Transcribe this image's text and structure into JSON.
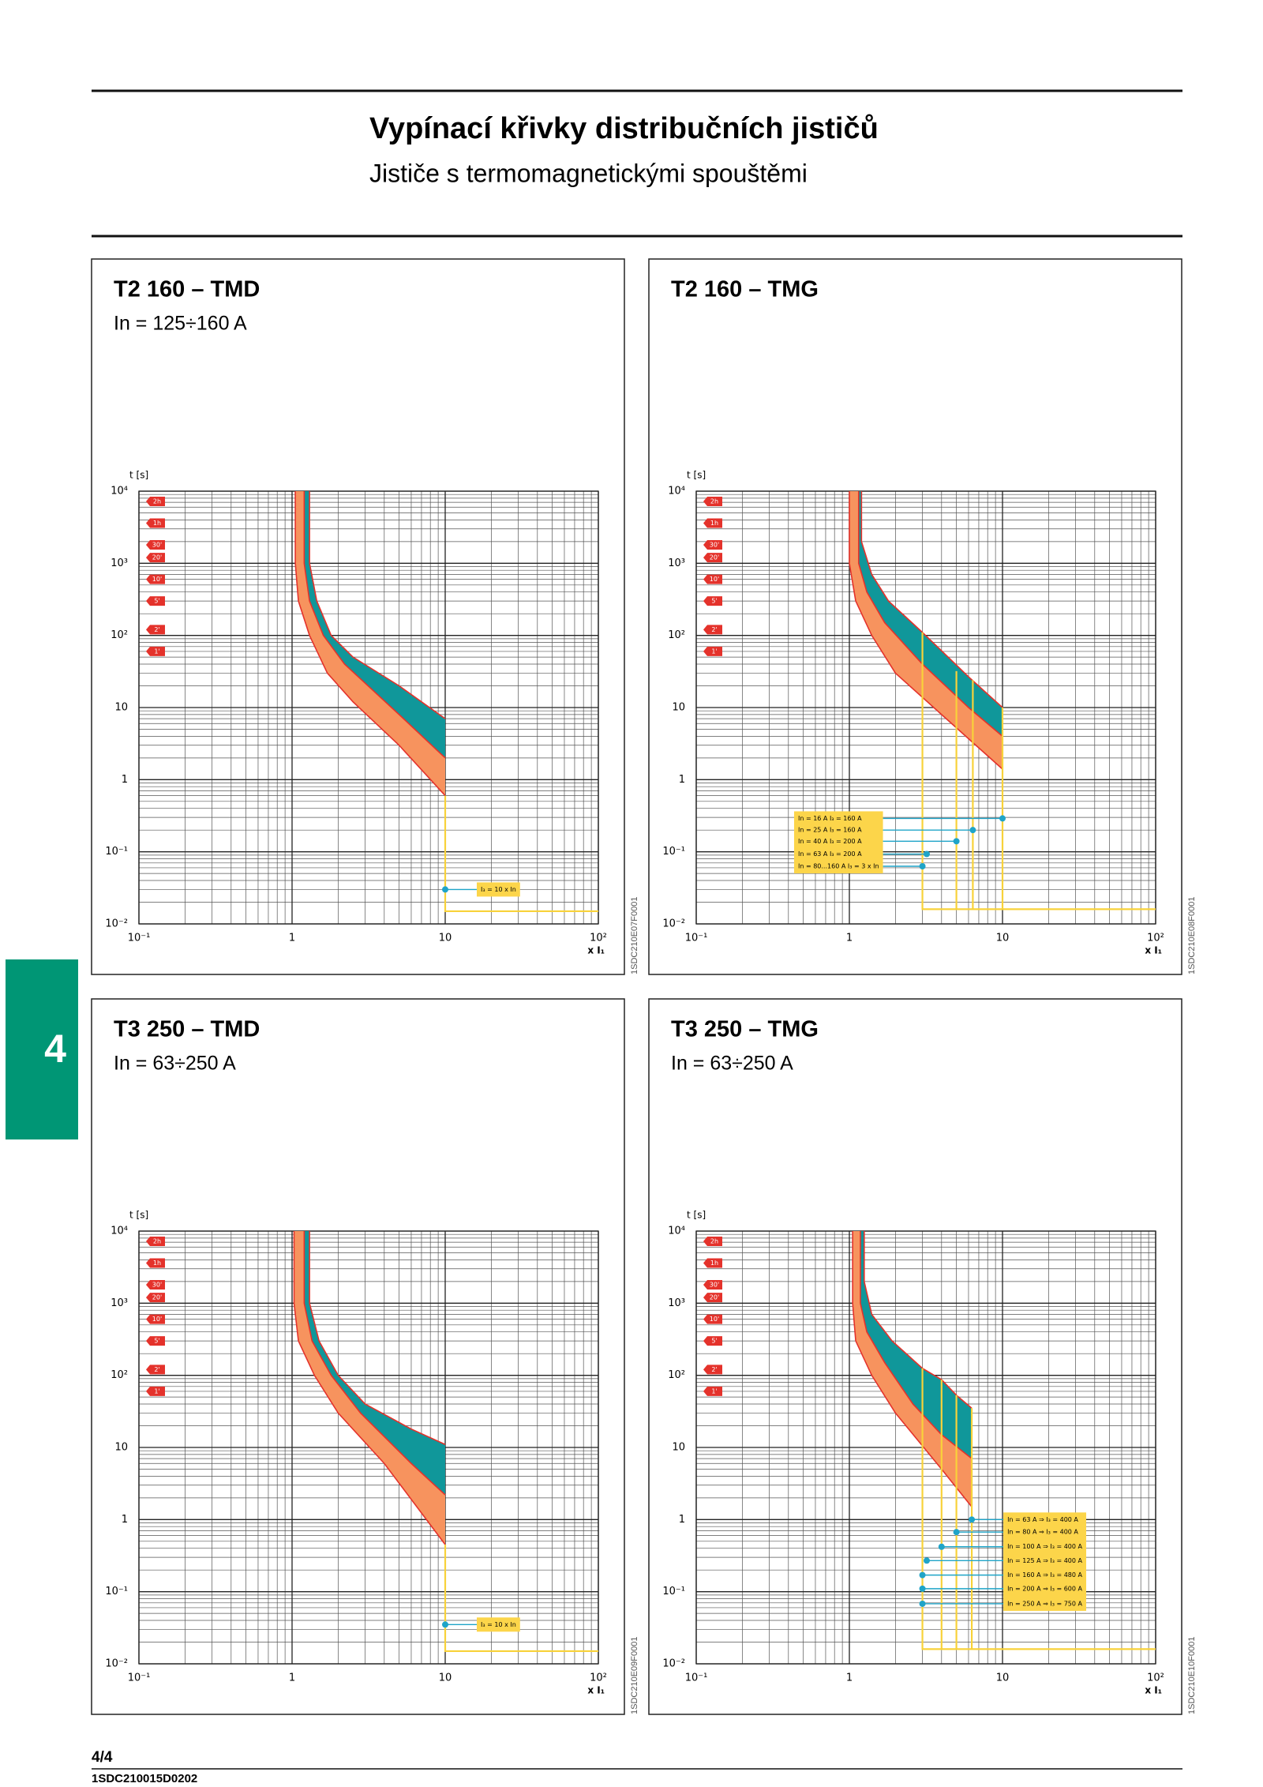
{
  "header": {
    "title": "Vypínací křivky distribučních jističů",
    "subtitle": "Jističe s termomagnetickými spouštěmi"
  },
  "side_tab": "4",
  "footer": {
    "page": "4/4",
    "code": "1SDC210015D0202"
  },
  "chart_data": [
    {
      "type": "band",
      "title": "T2 160 – TMD",
      "subtitle": "In = 125÷160 A",
      "ylabel": "t [s]",
      "xlabel": "x I₁",
      "code": "1SDC210E07F0001",
      "xscale": "log",
      "yscale": "log",
      "xlim": [
        0.1,
        100
      ],
      "ylim": [
        0.01,
        10000
      ],
      "xticks": [
        {
          "value": 0.1,
          "label": "10⁻¹"
        },
        1,
        10,
        {
          "value": 100,
          "label": "10²"
        }
      ],
      "yticks": [
        {
          "value": 0.01,
          "label": "10⁻²"
        },
        {
          "value": 0.1,
          "label": "10⁻¹"
        },
        1,
        10,
        {
          "value": 100,
          "label": "10²"
        },
        {
          "value": 1000,
          "label": "10³"
        },
        {
          "value": 10000,
          "label": "10⁴"
        }
      ],
      "grid": true,
      "minor_grid": true,
      "time_marks": [
        {
          "value": 7200,
          "label": "2h"
        },
        {
          "value": 3600,
          "label": "1h"
        },
        {
          "value": 1800,
          "label": "30'"
        },
        {
          "value": 1200,
          "label": "20'"
        },
        {
          "value": 600,
          "label": "10'"
        },
        {
          "value": 300,
          "label": "5'"
        },
        {
          "value": 120,
          "label": "2'"
        },
        {
          "value": 60,
          "label": "1'"
        }
      ],
      "colors": {
        "band": "#f7935e",
        "inner_band": "#10979a",
        "edge": "#e4322b",
        "trip": "#f8d23a",
        "marker": "#1fa4c8",
        "legend_fill": "#fcd54a",
        "tag": "#e4322b"
      },
      "edges": {
        "lower": {
          "x": [
            1.05,
            1.05,
            1.1,
            1.3,
            1.7,
            2.5,
            5,
            10
          ],
          "y": [
            10000,
            1000,
            300,
            100,
            30,
            12,
            3,
            0.6
          ]
        },
        "middle": {
          "x": [
            1.2,
            1.2,
            1.3,
            1.6,
            2.2,
            5,
            10
          ],
          "y": [
            10000,
            1000,
            300,
            100,
            40,
            8,
            2
          ]
        },
        "upper": {
          "x": [
            1.3,
            1.3,
            1.45,
            1.8,
            2.5,
            5,
            10
          ],
          "y": [
            10000,
            1000,
            300,
            100,
            50,
            20,
            7
          ]
        }
      },
      "trip_lines": [
        {
          "x": [
            10,
            10,
            100
          ],
          "y": [
            0.6,
            0.015,
            0.015
          ]
        }
      ],
      "markers": {
        "x": [
          10
        ],
        "y": [
          0.03
        ],
        "labels": [
          "I₃ = 10 x In"
        ]
      },
      "legend": "right"
    },
    {
      "type": "band",
      "title": "T2 160 – TMG",
      "ylabel": "t [s]",
      "xlabel": "x I₁",
      "code": "1SDC210E08F0001",
      "xscale": "log",
      "yscale": "log",
      "xlim": [
        0.1,
        100
      ],
      "ylim": [
        0.01,
        10000
      ],
      "xticks": [
        {
          "value": 0.1,
          "label": "10⁻¹"
        },
        1,
        10,
        {
          "value": 100,
          "label": "10²"
        }
      ],
      "yticks": [
        {
          "value": 0.01,
          "label": "10⁻²"
        },
        {
          "value": 0.1,
          "label": "10⁻¹"
        },
        1,
        10,
        {
          "value": 100,
          "label": "10²"
        },
        {
          "value": 1000,
          "label": "10³"
        },
        {
          "value": 10000,
          "label": "10⁴"
        }
      ],
      "grid": true,
      "minor_grid": true,
      "time_marks": [
        {
          "value": 7200,
          "label": "2h"
        },
        {
          "value": 3600,
          "label": "1h"
        },
        {
          "value": 1800,
          "label": "30'"
        },
        {
          "value": 1200,
          "label": "20'"
        },
        {
          "value": 600,
          "label": "10'"
        },
        {
          "value": 300,
          "label": "5'"
        },
        {
          "value": 120,
          "label": "2'"
        },
        {
          "value": 60,
          "label": "1'"
        }
      ],
      "colors": {
        "band": "#f7935e",
        "inner_band": "#10979a",
        "edge": "#e4322b",
        "trip": "#f8d23a",
        "marker": "#1fa4c8",
        "legend_fill": "#fcd54a",
        "tag": "#e4322b"
      },
      "edges": {
        "lower": {
          "x": [
            1,
            1,
            1.1,
            1.4,
            2,
            4,
            10
          ],
          "y": [
            10000,
            1000,
            300,
            100,
            30,
            8,
            1.4
          ]
        },
        "middle": {
          "x": [
            1.15,
            1.15,
            1.3,
            1.7,
            3,
            6,
            10
          ],
          "y": [
            10000,
            1000,
            400,
            150,
            40,
            10,
            4
          ]
        },
        "upper": {
          "x": [
            1.2,
            1.2,
            1.4,
            1.8,
            3,
            6.2,
            10
          ],
          "y": [
            10000,
            2000,
            700,
            300,
            110,
            25,
            10
          ]
        }
      },
      "trip_lines": [
        {
          "x": [
            3,
            3,
            100
          ],
          "y": [
            110,
            0.016,
            0.016
          ]
        },
        {
          "x": [
            5,
            5
          ],
          "y": [
            32,
            0.016
          ]
        },
        {
          "x": [
            6.4,
            6.4
          ],
          "y": [
            24,
            0.016
          ]
        },
        {
          "x": [
            10,
            10
          ],
          "y": [
            10,
            0.016
          ]
        }
      ],
      "markers": {
        "x": [
          10,
          6.4,
          5,
          3.2,
          3
        ],
        "y": [
          0.29,
          0.2,
          0.14,
          0.093,
          0.063
        ],
        "labels": [
          "In = 16 A I₃ = 160 A",
          "In = 25 A I₃ = 160 A",
          "In = 40 A I₃ = 200 A",
          "In = 63 A I₃ = 200 A",
          "In = 80...160 A I₃ = 3 x In"
        ]
      },
      "legend": "left"
    },
    {
      "type": "band",
      "title": "T3 250 – TMD",
      "subtitle": "In = 63÷250 A",
      "ylabel": "t [s]",
      "xlabel": "x I₁",
      "code": "1SDC210E09F0001",
      "xscale": "log",
      "yscale": "log",
      "xlim": [
        0.1,
        100
      ],
      "ylim": [
        0.01,
        10000
      ],
      "xticks": [
        {
          "value": 0.1,
          "label": "10⁻¹"
        },
        1,
        10,
        {
          "value": 100,
          "label": "10²"
        }
      ],
      "yticks": [
        {
          "value": 0.01,
          "label": "10⁻²"
        },
        {
          "value": 0.1,
          "label": "10⁻¹"
        },
        1,
        10,
        {
          "value": 100,
          "label": "10²"
        },
        {
          "value": 1000,
          "label": "10³"
        },
        {
          "value": 10000,
          "label": "10⁴"
        }
      ],
      "grid": true,
      "minor_grid": true,
      "time_marks": [
        {
          "value": 7200,
          "label": "2h"
        },
        {
          "value": 3600,
          "label": "1h"
        },
        {
          "value": 1800,
          "label": "30'"
        },
        {
          "value": 1200,
          "label": "20'"
        },
        {
          "value": 600,
          "label": "10'"
        },
        {
          "value": 300,
          "label": "5'"
        },
        {
          "value": 120,
          "label": "2'"
        },
        {
          "value": 60,
          "label": "1'"
        }
      ],
      "colors": {
        "band": "#f7935e",
        "inner_band": "#10979a",
        "edge": "#e4322b",
        "trip": "#f8d23a",
        "marker": "#1fa4c8",
        "legend_fill": "#fcd54a",
        "tag": "#e4322b"
      },
      "edges": {
        "lower": {
          "x": [
            1.03,
            1.03,
            1.1,
            1.4,
            2,
            4,
            10
          ],
          "y": [
            10000,
            1000,
            300,
            100,
            30,
            6,
            0.45
          ]
        },
        "middle": {
          "x": [
            1.2,
            1.2,
            1.35,
            1.8,
            2.8,
            6,
            10
          ],
          "y": [
            10000,
            1000,
            300,
            100,
            30,
            6,
            2.2
          ]
        },
        "upper": {
          "x": [
            1.3,
            1.3,
            1.5,
            2,
            3,
            6,
            10
          ],
          "y": [
            10000,
            1000,
            300,
            100,
            40,
            18,
            11
          ]
        }
      },
      "trip_lines": [
        {
          "x": [
            10,
            10,
            100
          ],
          "y": [
            0.45,
            0.015,
            0.015
          ]
        }
      ],
      "markers": {
        "x": [
          10
        ],
        "y": [
          0.035
        ],
        "labels": [
          "I₃ = 10 x In"
        ]
      },
      "legend": "right"
    },
    {
      "type": "band",
      "title": "T3 250 – TMG",
      "subtitle": "In = 63÷250 A",
      "ylabel": "t [s]",
      "xlabel": "x I₁",
      "code": "1SDC210E10F0001",
      "xscale": "log",
      "yscale": "log",
      "xlim": [
        0.1,
        100
      ],
      "ylim": [
        0.01,
        10000
      ],
      "xticks": [
        {
          "value": 0.1,
          "label": "10⁻¹"
        },
        1,
        10,
        {
          "value": 100,
          "label": "10²"
        }
      ],
      "yticks": [
        {
          "value": 0.01,
          "label": "10⁻²"
        },
        {
          "value": 0.1,
          "label": "10⁻¹"
        },
        1,
        10,
        {
          "value": 100,
          "label": "10²"
        },
        {
          "value": 1000,
          "label": "10³"
        },
        {
          "value": 10000,
          "label": "10⁴"
        }
      ],
      "grid": true,
      "minor_grid": true,
      "time_marks": [
        {
          "value": 7200,
          "label": "2h"
        },
        {
          "value": 3600,
          "label": "1h"
        },
        {
          "value": 1800,
          "label": "30'"
        },
        {
          "value": 1200,
          "label": "20'"
        },
        {
          "value": 600,
          "label": "10'"
        },
        {
          "value": 300,
          "label": "5'"
        },
        {
          "value": 120,
          "label": "2'"
        },
        {
          "value": 60,
          "label": "1'"
        }
      ],
      "colors": {
        "band": "#f7935e",
        "inner_band": "#10979a",
        "edge": "#e4322b",
        "trip": "#f8d23a",
        "marker": "#1fa4c8",
        "legend_fill": "#fcd54a",
        "tag": "#e4322b"
      },
      "edges": {
        "lower": {
          "x": [
            1.05,
            1.05,
            1.1,
            1.4,
            2,
            4,
            6.3
          ],
          "y": [
            10000,
            1000,
            300,
            100,
            30,
            5,
            1.5
          ]
        },
        "middle": {
          "x": [
            1.18,
            1.18,
            1.3,
            1.7,
            2.6,
            4,
            6.3
          ],
          "y": [
            10000,
            1000,
            400,
            150,
            40,
            15,
            7
          ]
        },
        "upper": {
          "x": [
            1.25,
            1.25,
            1.4,
            1.9,
            3,
            4,
            5,
            6.3
          ],
          "y": [
            10000,
            2000,
            700,
            300,
            125,
            87,
            53,
            35
          ]
        }
      },
      "trip_lines": [
        {
          "x": [
            3,
            3,
            100
          ],
          "y": [
            125,
            0.016,
            0.016
          ]
        },
        {
          "x": [
            4,
            4
          ],
          "y": [
            87,
            0.016
          ]
        },
        {
          "x": [
            5,
            5
          ],
          "y": [
            53,
            0.016
          ]
        },
        {
          "x": [
            6.3,
            6.3
          ],
          "y": [
            35,
            0.016
          ]
        }
      ],
      "markers": {
        "x": [
          6.3,
          5,
          4,
          3.2,
          3,
          3,
          3
        ],
        "y": [
          1,
          0.67,
          0.42,
          0.27,
          0.17,
          0.11,
          0.068
        ],
        "labels": [
          "In = 63 A ⇒ I₃ = 400 A",
          "In = 80 A ⇒ I₃ = 400 A",
          "In = 100 A ⇒ I₃ = 400 A",
          "In = 125 A ⇒ I₃ = 400 A",
          "In = 160 A ⇒ I₃ = 480 A",
          "In = 200 A ⇒ I₃ = 600 A",
          "In = 250 A ⇒ I₃ = 750 A"
        ]
      },
      "legend": "right"
    }
  ]
}
